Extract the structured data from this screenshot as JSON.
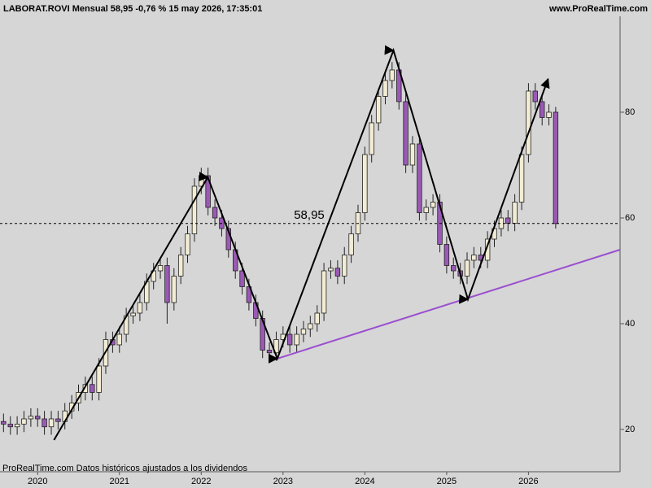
{
  "chart_data": {
    "type": "candlestick",
    "title": "LABORAT.ROVI Mensual 58,95 -0,76 % 15 may 2026, 17:35:01",
    "source": "www.ProRealTime.com",
    "footnote": "ProRealTime.com  Datos históricos ajustados a los dividendos",
    "x": [
      2019.583,
      2019.667,
      2019.75,
      2019.833,
      2019.917,
      2020,
      2020.083,
      2020.167,
      2020.25,
      2020.333,
      2020.417,
      2020.5,
      2020.583,
      2020.667,
      2020.75,
      2020.833,
      2020.917,
      2021,
      2021.083,
      2021.167,
      2021.25,
      2021.333,
      2021.417,
      2021.5,
      2021.583,
      2021.667,
      2021.75,
      2021.833,
      2021.917,
      2022,
      2022.083,
      2022.167,
      2022.25,
      2022.333,
      2022.417,
      2022.5,
      2022.583,
      2022.667,
      2022.75,
      2022.833,
      2022.917,
      2023,
      2023.083,
      2023.167,
      2023.25,
      2023.333,
      2023.417,
      2023.5,
      2023.583,
      2023.667,
      2023.75,
      2023.833,
      2023.917,
      2024,
      2024.083,
      2024.167,
      2024.25,
      2024.333,
      2024.417,
      2024.5,
      2024.583,
      2024.667,
      2024.75,
      2024.833,
      2024.917,
      2025,
      2025.083,
      2025.167,
      2025.25,
      2025.333,
      2025.417,
      2025.5,
      2025.583,
      2025.667,
      2025.75,
      2025.833,
      2025.917,
      2026,
      2026.083,
      2026.167,
      2026.25,
      2026.333
    ],
    "open": [
      21.5,
      21,
      20.5,
      21,
      22,
      22.5,
      22,
      20.5,
      22,
      21.5,
      23.5,
      25,
      27,
      28.5,
      27,
      32,
      37,
      36,
      38,
      41.5,
      42,
      44,
      48,
      50,
      51,
      44,
      49,
      53,
      57,
      66,
      68,
      62,
      60,
      58,
      54,
      50,
      47,
      44,
      41,
      35,
      34.5,
      37,
      38,
      36,
      38,
      39,
      40,
      42,
      50,
      50.5,
      49,
      53,
      57,
      61,
      72,
      78,
      83,
      86,
      88,
      82,
      70,
      74,
      61,
      62,
      63,
      55,
      51,
      50,
      49,
      52,
      53,
      52,
      56,
      58,
      60,
      59,
      63,
      72,
      84,
      82,
      79,
      80
    ],
    "high": [
      23,
      22.5,
      22.5,
      23.5,
      24,
      24,
      23.5,
      23.5,
      23.5,
      25,
      26.5,
      28.5,
      30,
      30,
      33.5,
      38.5,
      38.5,
      39.5,
      43,
      43.5,
      45.5,
      49.5,
      51.5,
      52.5,
      52.5,
      50.5,
      54.5,
      58.5,
      67.5,
      69.5,
      69.5,
      63.5,
      61.5,
      59.5,
      55.5,
      51.5,
      48.5,
      45.5,
      42.5,
      36.5,
      38.5,
      39.5,
      39.5,
      39.5,
      40.5,
      41.5,
      43.5,
      51.5,
      52,
      52,
      54.5,
      58.5,
      62.5,
      73.5,
      79.5,
      84.5,
      87.5,
      89.5,
      89.5,
      83.5,
      75.5,
      75.5,
      63.5,
      64.5,
      64.5,
      56.5,
      52.5,
      51.5,
      53.5,
      54.5,
      54.5,
      57.5,
      59.5,
      61.5,
      61.5,
      64.5,
      73.5,
      85.5,
      85.5,
      83.5,
      81.5,
      81
    ],
    "low": [
      19.5,
      19,
      19,
      19.5,
      20.5,
      20.5,
      19,
      19,
      20,
      20,
      22,
      23.5,
      25.5,
      25.5,
      25.5,
      30.5,
      34.5,
      34.5,
      36.5,
      40,
      40.5,
      42.5,
      46.5,
      48.5,
      40,
      42.5,
      47.5,
      51.5,
      55.5,
      64.5,
      60.5,
      58.5,
      56.5,
      52.5,
      48.5,
      45.5,
      42.5,
      39.5,
      33.5,
      33,
      33,
      35.5,
      34.5,
      34.5,
      36.5,
      37.5,
      38.5,
      40.5,
      48.5,
      47.5,
      47.5,
      51.5,
      55.5,
      59.5,
      70.5,
      76.5,
      81.5,
      84.5,
      80.5,
      68.5,
      68.5,
      59.5,
      59.5,
      60.5,
      53.5,
      49.5,
      48.5,
      47.5,
      47.5,
      50.5,
      50.5,
      50.5,
      54.5,
      56.5,
      57.5,
      57.5,
      61.5,
      70.5,
      80.5,
      77.5,
      77.5,
      58
    ],
    "close": [
      21,
      20.5,
      21,
      22,
      22.5,
      22,
      20.5,
      22,
      21.5,
      23.5,
      25,
      27,
      28.5,
      27,
      32,
      37,
      36,
      38,
      41.5,
      42,
      44,
      48,
      50,
      51,
      44,
      49,
      53,
      57,
      66,
      68,
      62,
      60,
      58,
      54,
      50,
      47,
      44,
      41,
      35,
      34.5,
      37,
      38,
      36,
      38,
      39,
      40,
      42,
      50,
      50.5,
      49,
      53,
      57,
      61,
      72,
      78,
      83,
      86,
      88,
      82,
      70,
      74,
      61,
      62,
      63,
      55,
      51,
      50,
      49,
      52,
      53,
      52,
      56,
      58,
      60,
      59,
      63,
      72,
      84,
      82,
      79,
      80,
      58.95
    ],
    "up_color": "#f2ecd4",
    "down_color": "#9b59b6",
    "xlim": [
      2019.54,
      2027.12
    ],
    "xticks": [
      2020,
      2021,
      2022,
      2023,
      2024,
      2025,
      2026
    ],
    "ylim": [
      12,
      98.15
    ],
    "yticks": [
      20,
      40,
      60,
      80
    ],
    "price_line": {
      "value": 58.95,
      "label": "58,95"
    },
    "zigzag": {
      "x": [
        2020.2,
        2022.08,
        2022.93,
        2024.35,
        2025.26,
        2026.24
      ],
      "y": [
        18,
        67.7,
        33.4,
        91.7,
        44.6,
        86.3
      ],
      "color": "#000000"
    },
    "trendline": {
      "x": [
        2022.93,
        2027.12
      ],
      "y": [
        33.4,
        54
      ],
      "color": "#9b4fd0"
    }
  }
}
